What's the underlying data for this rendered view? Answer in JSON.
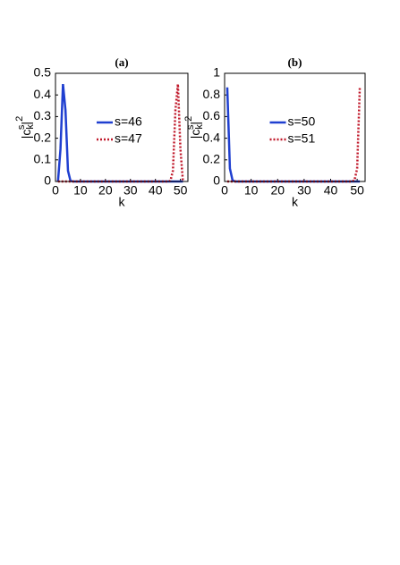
{
  "chart_data": [
    {
      "type": "line",
      "title": "(a)",
      "xlabel": "k",
      "ylabel": [
        "|c",
        "k",
        "s",
        "|",
        "2"
      ],
      "x": [
        1,
        2,
        3,
        4,
        5,
        6,
        7,
        8,
        9,
        10,
        11,
        12,
        13,
        14,
        15,
        16,
        17,
        18,
        19,
        20,
        21,
        22,
        23,
        24,
        25,
        26,
        27,
        28,
        29,
        30,
        31,
        32,
        33,
        34,
        35,
        36,
        37,
        38,
        39,
        40,
        41,
        42,
        43,
        44,
        45,
        46,
        47,
        48,
        49,
        50,
        51
      ],
      "series": [
        {
          "name": "s=46",
          "color": "#1f3fd0",
          "style": "solid",
          "values": [
            0,
            0.15,
            0.45,
            0.33,
            0.05,
            0.003,
            0,
            0,
            0,
            0,
            0,
            0,
            0,
            0,
            0,
            0,
            0,
            0,
            0,
            0,
            0,
            0,
            0,
            0,
            0,
            0,
            0,
            0,
            0,
            0,
            0,
            0,
            0,
            0,
            0,
            0,
            0,
            0,
            0,
            0,
            0,
            0,
            0,
            0,
            0,
            0,
            0,
            0,
            0,
            0,
            0
          ]
        },
        {
          "name": "s=47",
          "color": "#c0182a",
          "style": "dotted",
          "values": [
            0,
            0,
            0,
            0,
            0,
            0,
            0,
            0,
            0,
            0,
            0,
            0,
            0,
            0,
            0,
            0,
            0,
            0,
            0,
            0,
            0,
            0,
            0,
            0,
            0,
            0,
            0,
            0,
            0,
            0,
            0,
            0,
            0,
            0,
            0,
            0,
            0,
            0,
            0,
            0,
            0,
            0,
            0,
            0,
            0,
            0.003,
            0.05,
            0.33,
            0.45,
            0.15,
            0
          ]
        }
      ],
      "xlim": [
        0,
        53
      ],
      "xticks": [
        0,
        10,
        20,
        30,
        40,
        50
      ],
      "ylim": [
        0,
        0.5
      ],
      "yticks": [
        0,
        0.1,
        0.2,
        0.3,
        0.4,
        0.5
      ],
      "legend": "center"
    },
    {
      "type": "line",
      "title": "(b)",
      "xlabel": "k",
      "ylabel": [
        "|c",
        "k",
        "s",
        "|",
        "2"
      ],
      "x": [
        1,
        2,
        3,
        4,
        5,
        6,
        7,
        8,
        9,
        10,
        11,
        12,
        13,
        14,
        15,
        16,
        17,
        18,
        19,
        20,
        21,
        22,
        23,
        24,
        25,
        26,
        27,
        28,
        29,
        30,
        31,
        32,
        33,
        34,
        35,
        36,
        37,
        38,
        39,
        40,
        41,
        42,
        43,
        44,
        45,
        46,
        47,
        48,
        49,
        50,
        51
      ],
      "series": [
        {
          "name": "s=50",
          "color": "#1f3fd0",
          "style": "solid",
          "values": [
            0.87,
            0.12,
            0.01,
            0,
            0,
            0,
            0,
            0,
            0,
            0,
            0,
            0,
            0,
            0,
            0,
            0,
            0,
            0,
            0,
            0,
            0,
            0,
            0,
            0,
            0,
            0,
            0,
            0,
            0,
            0,
            0,
            0,
            0,
            0,
            0,
            0,
            0,
            0,
            0,
            0,
            0,
            0,
            0,
            0,
            0,
            0,
            0,
            0,
            0,
            0,
            0
          ]
        },
        {
          "name": "s=51",
          "color": "#c0182a",
          "style": "dotted",
          "values": [
            0,
            0,
            0,
            0,
            0,
            0,
            0,
            0,
            0,
            0,
            0,
            0,
            0,
            0,
            0,
            0,
            0,
            0,
            0,
            0,
            0,
            0,
            0,
            0,
            0,
            0,
            0,
            0,
            0,
            0,
            0,
            0,
            0,
            0,
            0,
            0,
            0,
            0,
            0,
            0,
            0,
            0,
            0,
            0,
            0,
            0,
            0,
            0,
            0.01,
            0.12,
            0.87
          ]
        }
      ],
      "xlim": [
        0,
        53
      ],
      "xticks": [
        0,
        10,
        20,
        30,
        40,
        50
      ],
      "ylim": [
        0,
        1
      ],
      "yticks": [
        0,
        0.2,
        0.4,
        0.6,
        0.8,
        1
      ],
      "legend": "center"
    }
  ]
}
